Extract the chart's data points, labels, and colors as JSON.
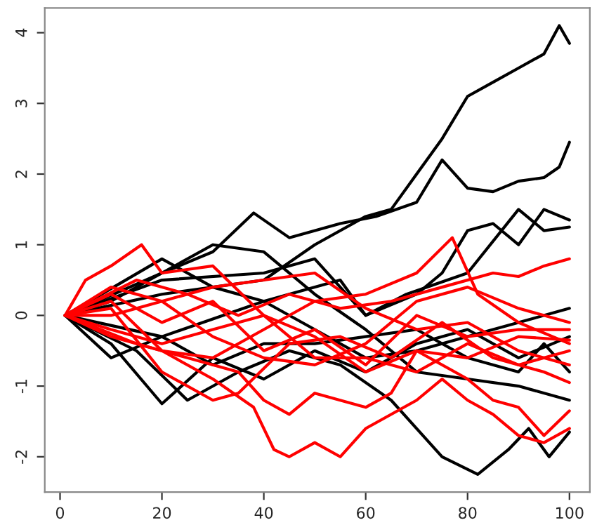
{
  "chart_data": {
    "type": "line",
    "xlim": [
      -3,
      104
    ],
    "ylim": [
      -2.5,
      4.35
    ],
    "xticks": [
      0,
      20,
      40,
      60,
      80,
      100
    ],
    "yticks": [
      -2,
      -1,
      0,
      1,
      2,
      3,
      4
    ],
    "grid": false,
    "marker": "none",
    "line_style": "solid",
    "series": [
      {
        "color": "#000000",
        "x": [
          1,
          20,
          40,
          50,
          60,
          65,
          70,
          75,
          80,
          85,
          90,
          95,
          98,
          100
        ],
        "values": [
          0,
          0.3,
          0.5,
          1.0,
          1.4,
          1.5,
          2.0,
          2.5,
          3.1,
          3.3,
          3.5,
          3.7,
          4.1,
          3.85
        ]
      },
      {
        "color": "#000000",
        "x": [
          1,
          10,
          20,
          30,
          38,
          45,
          55,
          62,
          70,
          75,
          80,
          85,
          90,
          95,
          98,
          100
        ],
        "values": [
          0,
          0.2,
          0.6,
          0.9,
          1.45,
          1.1,
          1.3,
          1.4,
          1.6,
          2.2,
          1.8,
          1.75,
          1.9,
          1.95,
          2.1,
          2.45
        ]
      },
      {
        "color": "#000000",
        "x": [
          1,
          20,
          40,
          55,
          60,
          70,
          75,
          80,
          85,
          90,
          95,
          100
        ],
        "values": [
          0,
          -0.3,
          0.2,
          0.5,
          0.0,
          0.3,
          0.6,
          1.2,
          1.3,
          1.0,
          1.5,
          1.35
        ]
      },
      {
        "color": "#000000",
        "x": [
          1,
          20,
          40,
          50,
          60,
          68,
          80,
          90,
          95,
          100
        ],
        "values": [
          0,
          0.5,
          0.6,
          0.8,
          0.0,
          0.3,
          0.6,
          1.5,
          1.2,
          1.25
        ]
      },
      {
        "color": "#000000",
        "x": [
          1,
          15,
          25,
          35,
          45,
          55,
          65,
          70,
          75,
          82,
          88,
          92,
          96,
          100
        ],
        "values": [
          0,
          -0.5,
          -1.2,
          -0.8,
          -0.5,
          -0.7,
          -1.2,
          -1.6,
          -2.0,
          -2.25,
          -1.9,
          -1.6,
          -2.0,
          -1.65
        ]
      },
      {
        "color": "#000000",
        "x": [
          1,
          10,
          20,
          30,
          40,
          50,
          60,
          70,
          80,
          90,
          95,
          100
        ],
        "values": [
          0,
          -0.6,
          -0.3,
          -0.7,
          -0.4,
          -0.4,
          -0.3,
          -0.2,
          -0.6,
          -0.8,
          -0.4,
          -0.8
        ]
      },
      {
        "color": "#000000",
        "x": [
          1,
          20,
          30,
          40,
          50,
          60,
          70,
          80,
          90,
          100
        ],
        "values": [
          0,
          0.8,
          0.4,
          0.2,
          -0.2,
          -0.6,
          -0.5,
          -0.3,
          -0.1,
          0.1
        ]
      },
      {
        "color": "#000000",
        "x": [
          1,
          10,
          20,
          30,
          40,
          50,
          60,
          70,
          80,
          90,
          100
        ],
        "values": [
          0,
          -0.4,
          -1.25,
          -0.6,
          -0.9,
          -0.5,
          -0.8,
          -0.4,
          -0.2,
          -0.6,
          -0.3
        ]
      },
      {
        "color": "#000000",
        "x": [
          1,
          20,
          30,
          40,
          50,
          60,
          70,
          80,
          90,
          100
        ],
        "values": [
          0,
          0.6,
          1.0,
          0.9,
          0.3,
          -0.2,
          -0.8,
          -0.9,
          -1.0,
          -1.2
        ]
      },
      {
        "color": "#ff0000",
        "x": [
          1,
          15,
          25,
          35,
          45,
          55,
          65,
          75,
          85,
          90,
          95,
          100
        ],
        "values": [
          0,
          0.5,
          0.3,
          0.0,
          0.3,
          0.1,
          0.2,
          0.4,
          0.6,
          0.55,
          0.7,
          0.8
        ]
      },
      {
        "color": "#ff0000",
        "x": [
          1,
          10,
          20,
          30,
          40,
          50,
          60,
          70,
          77,
          82,
          90,
          100
        ],
        "values": [
          0,
          0.2,
          -0.5,
          -0.6,
          -0.2,
          0.2,
          0.3,
          0.6,
          1.1,
          0.3,
          -0.1,
          -0.4
        ]
      },
      {
        "color": "#ff0000",
        "x": [
          1,
          5,
          10,
          16,
          20,
          30,
          40,
          50,
          60,
          70,
          80,
          90,
          100
        ],
        "values": [
          0,
          0.5,
          0.7,
          1.0,
          0.6,
          0.7,
          0.0,
          -0.6,
          -0.6,
          -0.8,
          -0.4,
          -0.7,
          -0.5
        ]
      },
      {
        "color": "#ff0000",
        "x": [
          1,
          10,
          20,
          30,
          38,
          42,
          45,
          50,
          55,
          60,
          70,
          75,
          80,
          85,
          90,
          95,
          100
        ],
        "values": [
          0,
          -0.3,
          -0.5,
          -0.9,
          -1.3,
          -1.9,
          -2.0,
          -1.8,
          -2.0,
          -1.6,
          -1.2,
          -0.9,
          -1.2,
          -1.4,
          -1.7,
          -1.8,
          -1.6
        ]
      },
      {
        "color": "#ff0000",
        "x": [
          1,
          15,
          25,
          35,
          40,
          45,
          50,
          60,
          65,
          70,
          80,
          85,
          90,
          95,
          100
        ],
        "values": [
          0,
          -0.4,
          -0.6,
          -0.8,
          -1.2,
          -1.4,
          -1.1,
          -1.3,
          -1.1,
          -0.5,
          -0.9,
          -1.2,
          -1.3,
          -1.7,
          -1.35
        ]
      },
      {
        "color": "#ff0000",
        "x": [
          1,
          10,
          20,
          30,
          35,
          45,
          55,
          65,
          75,
          85,
          95,
          100
        ],
        "values": [
          0,
          0.1,
          -0.8,
          -1.2,
          -1.1,
          -0.4,
          -0.3,
          -0.6,
          -0.1,
          -0.6,
          -0.8,
          -0.95
        ]
      },
      {
        "color": "#ff0000",
        "x": [
          1,
          10,
          20,
          30,
          40,
          50,
          60,
          70,
          80,
          90,
          100
        ],
        "values": [
          0,
          0.3,
          -0.1,
          0.2,
          -0.5,
          -0.2,
          -0.7,
          0.0,
          -0.3,
          -0.2,
          -0.2
        ]
      },
      {
        "color": "#ff0000",
        "x": [
          1,
          10,
          20,
          30,
          40,
          50,
          60,
          70,
          80,
          90,
          100
        ],
        "values": [
          0,
          0.0,
          0.2,
          0.4,
          0.5,
          0.6,
          0.1,
          -0.2,
          -0.1,
          -0.5,
          -0.7
        ]
      },
      {
        "color": "#ff0000",
        "x": [
          1,
          10,
          20,
          30,
          40,
          50,
          60,
          70,
          80,
          90,
          100
        ],
        "values": [
          0,
          -0.2,
          -0.4,
          -0.2,
          0.0,
          -0.3,
          -0.8,
          -0.5,
          -0.6,
          -0.3,
          -0.35
        ]
      },
      {
        "color": "#ff0000",
        "x": [
          1,
          10,
          20,
          30,
          40,
          50,
          60,
          70,
          80,
          90,
          100
        ],
        "values": [
          0,
          0.4,
          0.2,
          -0.3,
          -0.6,
          -0.7,
          -0.4,
          0.2,
          0.4,
          0.1,
          -0.1
        ]
      }
    ]
  }
}
